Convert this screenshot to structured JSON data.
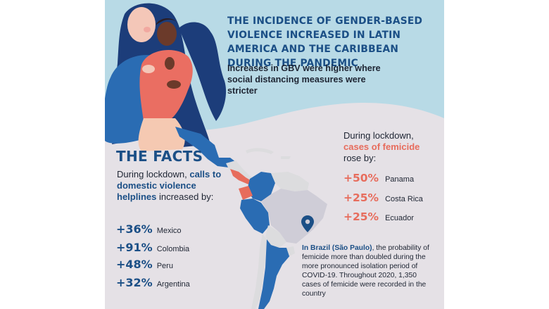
{
  "headline": "THE INCIDENCE OF GENDER-BASED VIOLENCE INCREASED IN LATIN AMERICA AND THE CARIBBEAN DURING THE PANDEMIC",
  "subheadline": "Increases in GBV were higher where social distancing measures were stricter",
  "facts": {
    "title": "THE FACTS",
    "intro_prefix": "During lockdown,",
    "intro_highlight": "calls to domestic violence helplines",
    "intro_suffix": "increased by:",
    "items": [
      {
        "value": "+36%",
        "country": "Mexico"
      },
      {
        "value": "+91%",
        "country": "Colombia"
      },
      {
        "value": "+48%",
        "country": "Peru"
      },
      {
        "value": "+32%",
        "country": "Argentina"
      }
    ]
  },
  "femicide": {
    "intro_prefix": "During lockdown,",
    "intro_highlight": "cases of femicide",
    "intro_suffix": "rose by:",
    "items": [
      {
        "value": "+50%",
        "country": "Panama"
      },
      {
        "value": "+25%",
        "country": "Costa Rica"
      },
      {
        "value": "+25%",
        "country": "Ecuador"
      }
    ]
  },
  "brazil": {
    "highlight": "In Brazil (São Paulo)",
    "text": ", the probability of femicide more than doubled during the more pronounced isolation period of COVID-19. Throughout 2020, 1,350 cases of femicide were recorded in the country"
  },
  "colors": {
    "dark_blue": "#1b4f86",
    "light_blue": "#b8dae6",
    "coral": "#e76c5c",
    "background": "#e5e1e6"
  }
}
